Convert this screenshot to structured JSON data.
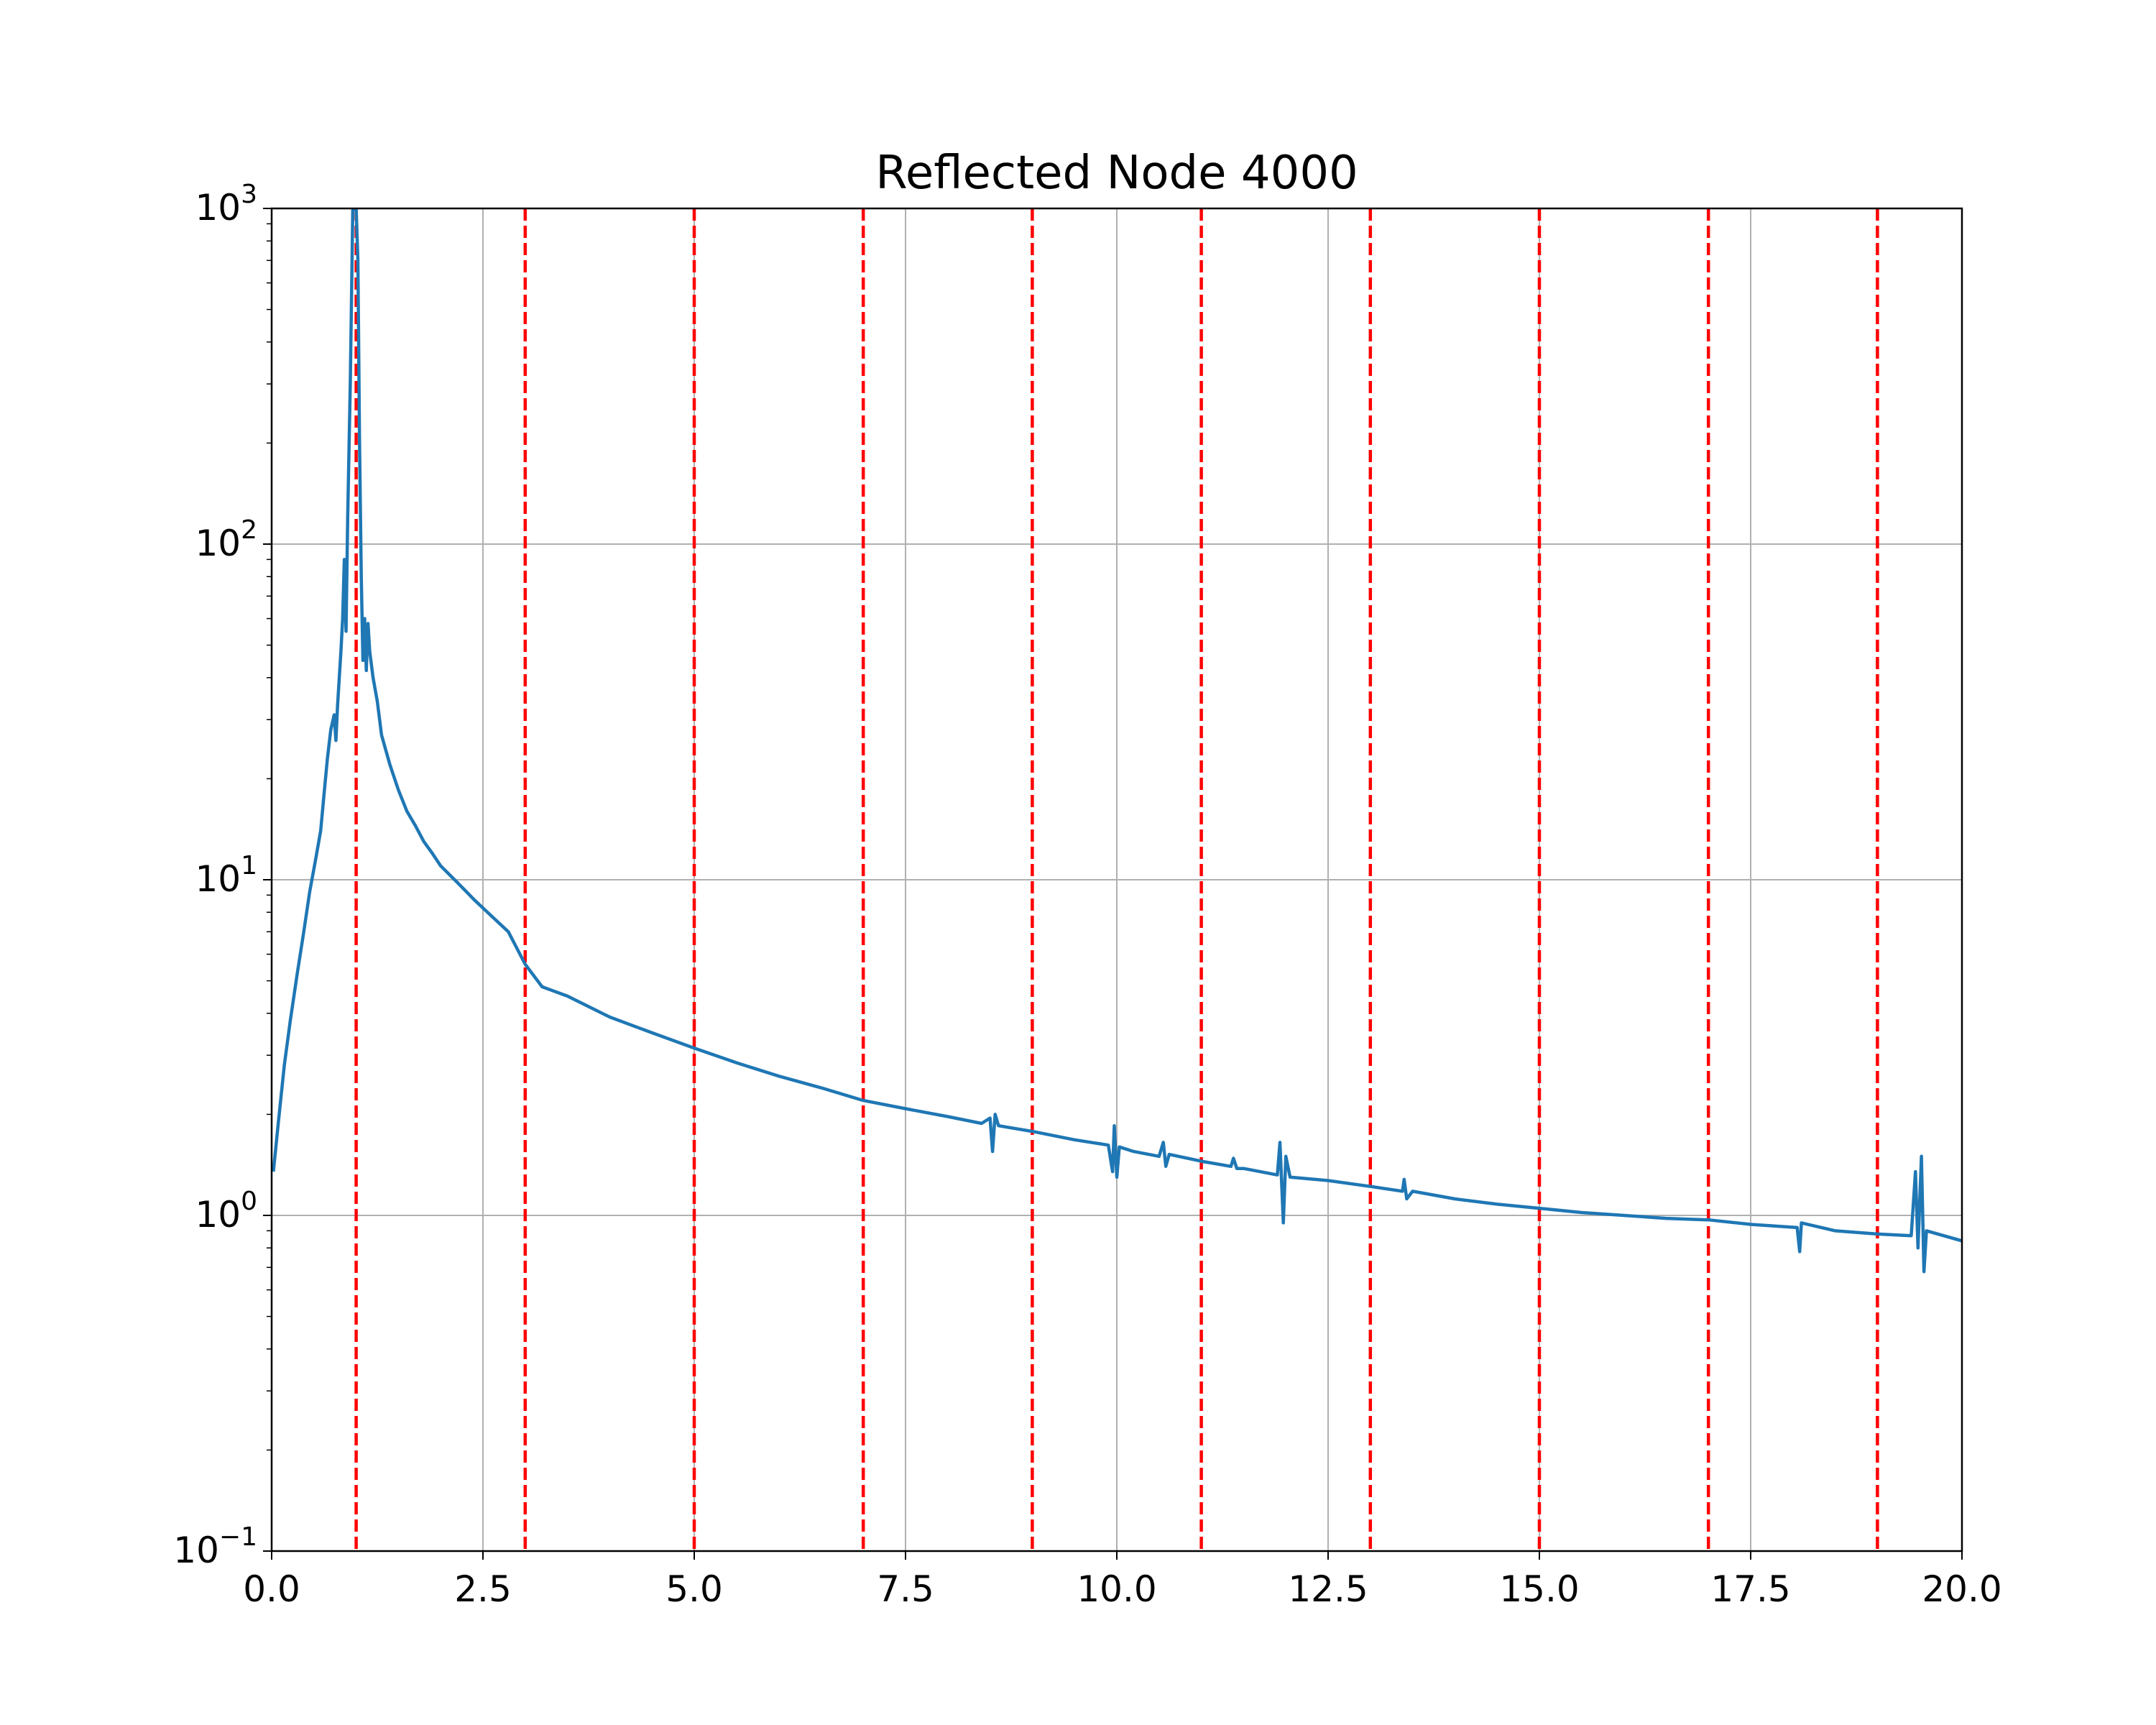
{
  "chart_data": {
    "type": "line",
    "title": "Reflected Node 4000",
    "xlabel": "",
    "ylabel": "",
    "xlim": [
      0,
      20
    ],
    "ylim": [
      0.1,
      1000
    ],
    "yscale": "log",
    "grid": true,
    "x_ticks": [
      {
        "value": 0.0,
        "label": "0.0"
      },
      {
        "value": 2.5,
        "label": "2.5"
      },
      {
        "value": 5.0,
        "label": "5.0"
      },
      {
        "value": 7.5,
        "label": "7.5"
      },
      {
        "value": 10.0,
        "label": "10.0"
      },
      {
        "value": 12.5,
        "label": "12.5"
      },
      {
        "value": 15.0,
        "label": "15.0"
      },
      {
        "value": 17.5,
        "label": "17.5"
      },
      {
        "value": 20.0,
        "label": "20.0"
      }
    ],
    "y_ticks": [
      {
        "value": 0.1,
        "base": "10",
        "exp": "−1"
      },
      {
        "value": 1,
        "base": "10",
        "exp": "0"
      },
      {
        "value": 10,
        "base": "10",
        "exp": "1"
      },
      {
        "value": 100,
        "base": "10",
        "exp": "2"
      },
      {
        "value": 1000,
        "base": "10",
        "exp": "3"
      }
    ],
    "vlines": {
      "color": "#ff0000",
      "style": "dashed",
      "x": [
        1,
        3,
        5,
        7,
        9,
        11,
        13,
        15,
        17,
        19
      ]
    },
    "series": [
      {
        "color": "#1f77b4",
        "points": [
          [
            0.02,
            1.35
          ],
          [
            0.08,
            1.9
          ],
          [
            0.15,
            2.8
          ],
          [
            0.22,
            3.8
          ],
          [
            0.3,
            5.2
          ],
          [
            0.38,
            7.0
          ],
          [
            0.45,
            9.2
          ],
          [
            0.52,
            11.5
          ],
          [
            0.58,
            14.0
          ],
          [
            0.62,
            18.0
          ],
          [
            0.66,
            23.0
          ],
          [
            0.7,
            28.0
          ],
          [
            0.74,
            31.0
          ],
          [
            0.76,
            26.0
          ],
          [
            0.78,
            33.0
          ],
          [
            0.8,
            40.0
          ],
          [
            0.82,
            48.0
          ],
          [
            0.84,
            60.0
          ],
          [
            0.86,
            90.0
          ],
          [
            0.88,
            55.0
          ],
          [
            0.9,
            120.0
          ],
          [
            0.93,
            300.0
          ],
          [
            0.96,
            1000.0
          ],
          [
            1.0,
            1000.0
          ],
          [
            1.02,
            700.0
          ],
          [
            1.04,
            200.0
          ],
          [
            1.06,
            80.0
          ],
          [
            1.08,
            45.0
          ],
          [
            1.1,
            60.0
          ],
          [
            1.12,
            42.0
          ],
          [
            1.14,
            58.0
          ],
          [
            1.16,
            48.0
          ],
          [
            1.2,
            40.0
          ],
          [
            1.25,
            34.0
          ],
          [
            1.3,
            27.0
          ],
          [
            1.4,
            22.0
          ],
          [
            1.5,
            18.5
          ],
          [
            1.6,
            16.0
          ],
          [
            1.7,
            14.5
          ],
          [
            1.8,
            13.0
          ],
          [
            1.9,
            12.0
          ],
          [
            2.0,
            11.0
          ],
          [
            2.2,
            9.8
          ],
          [
            2.4,
            8.7
          ],
          [
            2.6,
            7.8
          ],
          [
            2.8,
            7.0
          ],
          [
            3.0,
            5.6
          ],
          [
            3.2,
            4.8
          ],
          [
            3.5,
            4.5
          ],
          [
            4.0,
            3.9
          ],
          [
            4.5,
            3.5
          ],
          [
            5.0,
            3.15
          ],
          [
            5.5,
            2.85
          ],
          [
            6.0,
            2.6
          ],
          [
            6.5,
            2.4
          ],
          [
            7.0,
            2.2
          ],
          [
            7.5,
            2.08
          ],
          [
            8.0,
            1.97
          ],
          [
            8.4,
            1.88
          ],
          [
            8.5,
            1.95
          ],
          [
            8.53,
            1.55
          ],
          [
            8.56,
            2.0
          ],
          [
            8.6,
            1.85
          ],
          [
            9.0,
            1.78
          ],
          [
            9.5,
            1.68
          ],
          [
            9.9,
            1.62
          ],
          [
            9.95,
            1.35
          ],
          [
            9.97,
            1.85
          ],
          [
            10.0,
            1.3
          ],
          [
            10.03,
            1.6
          ],
          [
            10.2,
            1.55
          ],
          [
            10.5,
            1.5
          ],
          [
            10.55,
            1.65
          ],
          [
            10.58,
            1.4
          ],
          [
            10.62,
            1.52
          ],
          [
            11.0,
            1.45
          ],
          [
            11.35,
            1.4
          ],
          [
            11.38,
            1.48
          ],
          [
            11.42,
            1.38
          ],
          [
            11.5,
            1.38
          ],
          [
            11.9,
            1.32
          ],
          [
            11.93,
            1.65
          ],
          [
            11.97,
            0.95
          ],
          [
            12.0,
            1.5
          ],
          [
            12.05,
            1.3
          ],
          [
            12.5,
            1.27
          ],
          [
            13.0,
            1.22
          ],
          [
            13.38,
            1.18
          ],
          [
            13.4,
            1.28
          ],
          [
            13.43,
            1.12
          ],
          [
            13.5,
            1.18
          ],
          [
            14.0,
            1.12
          ],
          [
            14.5,
            1.08
          ],
          [
            15.0,
            1.05
          ],
          [
            15.5,
            1.02
          ],
          [
            16.0,
            1.0
          ],
          [
            16.5,
            0.98
          ],
          [
            17.0,
            0.97
          ],
          [
            17.5,
            0.94
          ],
          [
            18.05,
            0.92
          ],
          [
            18.08,
            0.78
          ],
          [
            18.1,
            0.95
          ],
          [
            18.5,
            0.9
          ],
          [
            19.0,
            0.88
          ],
          [
            19.4,
            0.87
          ],
          [
            19.45,
            1.35
          ],
          [
            19.48,
            0.8
          ],
          [
            19.52,
            1.5
          ],
          [
            19.55,
            0.68
          ],
          [
            19.58,
            0.9
          ],
          [
            20.0,
            0.84
          ]
        ]
      }
    ]
  }
}
